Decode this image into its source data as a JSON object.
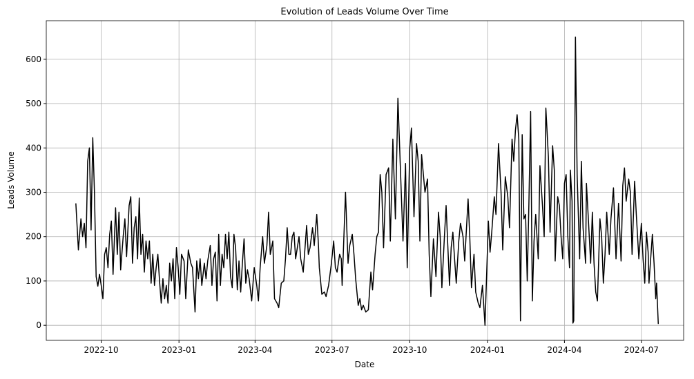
{
  "chart_data": {
    "type": "line",
    "title": "Evolution of Leads Volume Over Time",
    "xlabel": "Date",
    "ylabel": "Leads Volume",
    "color": "#000000",
    "grid": true,
    "xlim": [
      "2022-07-28",
      "2024-08-20"
    ],
    "ylim": [
      -34,
      687
    ],
    "xticks": [
      "2022-10",
      "2023-01",
      "2023-04",
      "2023-07",
      "2023-10",
      "2024-01",
      "2024-04",
      "2024-07"
    ],
    "yticks": [
      0,
      100,
      200,
      300,
      400,
      500,
      600
    ],
    "x": [
      "2022-09-01",
      "2022-09-04",
      "2022-09-07",
      "2022-09-09",
      "2022-09-11",
      "2022-09-13",
      "2022-09-15",
      "2022-09-17",
      "2022-09-19",
      "2022-09-21",
      "2022-09-23",
      "2022-09-25",
      "2022-09-27",
      "2022-09-29",
      "2022-10-01",
      "2022-10-03",
      "2022-10-05",
      "2022-10-07",
      "2022-10-09",
      "2022-10-11",
      "2022-10-13",
      "2022-10-15",
      "2022-10-18",
      "2022-10-20",
      "2022-10-22",
      "2022-10-24",
      "2022-10-27",
      "2022-10-29",
      "2022-10-31",
      "2022-11-03",
      "2022-11-05",
      "2022-11-07",
      "2022-11-09",
      "2022-11-11",
      "2022-11-13",
      "2022-11-15",
      "2022-11-17",
      "2022-11-19",
      "2022-11-21",
      "2022-11-23",
      "2022-11-25",
      "2022-11-27",
      "2022-11-29",
      "2022-12-01",
      "2022-12-03",
      "2022-12-05",
      "2022-12-07",
      "2022-12-09",
      "2022-12-11",
      "2022-12-13",
      "2022-12-15",
      "2022-12-17",
      "2022-12-19",
      "2022-12-21",
      "2022-12-23",
      "2022-12-25",
      "2022-12-27",
      "2022-12-29",
      "2022-12-31",
      "2023-01-02",
      "2023-01-04",
      "2023-01-07",
      "2023-01-09",
      "2023-01-12",
      "2023-01-15",
      "2023-01-17",
      "2023-01-20",
      "2023-01-22",
      "2023-01-24",
      "2023-01-26",
      "2023-01-28",
      "2023-01-31",
      "2023-02-02",
      "2023-02-04",
      "2023-02-07",
      "2023-02-09",
      "2023-02-11",
      "2023-02-13",
      "2023-02-15",
      "2023-02-17",
      "2023-02-19",
      "2023-02-21",
      "2023-02-23",
      "2023-02-25",
      "2023-02-27",
      "2023-03-01",
      "2023-03-03",
      "2023-03-05",
      "2023-03-07",
      "2023-03-09",
      "2023-03-11",
      "2023-03-13",
      "2023-03-15",
      "2023-03-17",
      "2023-03-19",
      "2023-03-21",
      "2023-03-23",
      "2023-03-25",
      "2023-03-28",
      "2023-03-31",
      "2023-04-03",
      "2023-04-05",
      "2023-04-07",
      "2023-04-10",
      "2023-04-12",
      "2023-04-15",
      "2023-04-17",
      "2023-04-19",
      "2023-04-22",
      "2023-04-24",
      "2023-04-27",
      "2023-04-29",
      "2023-05-02",
      "2023-05-05",
      "2023-05-07",
      "2023-05-09",
      "2023-05-11",
      "2023-05-13",
      "2023-05-15",
      "2023-05-17",
      "2023-05-19",
      "2023-05-21",
      "2023-05-23",
      "2023-05-25",
      "2023-05-28",
      "2023-06-01",
      "2023-06-03",
      "2023-06-05",
      "2023-06-08",
      "2023-06-10",
      "2023-06-13",
      "2023-06-15",
      "2023-06-16",
      "2023-06-19",
      "2023-06-22",
      "2023-06-24",
      "2023-06-27",
      "2023-06-30",
      "2023-07-03",
      "2023-07-05",
      "2023-07-07",
      "2023-07-10",
      "2023-07-12",
      "2023-07-13",
      "2023-07-17",
      "2023-07-20",
      "2023-07-22",
      "2023-07-25",
      "2023-07-27",
      "2023-07-29",
      "2023-08-01",
      "2023-08-03",
      "2023-08-05",
      "2023-08-07",
      "2023-08-10",
      "2023-08-13",
      "2023-08-16",
      "2023-08-18",
      "2023-08-21",
      "2023-08-23",
      "2023-08-25",
      "2023-08-27",
      "2023-08-29",
      "2023-08-31",
      "2023-09-03",
      "2023-09-06",
      "2023-09-08",
      "2023-09-11",
      "2023-09-14",
      "2023-09-17",
      "2023-09-20",
      "2023-09-23",
      "2023-09-26",
      "2023-09-28",
      "2023-10-01",
      "2023-10-03",
      "2023-10-06",
      "2023-10-09",
      "2023-10-11",
      "2023-10-13",
      "2023-10-15",
      "2023-10-19",
      "2023-10-22",
      "2023-10-24",
      "2023-10-26",
      "2023-10-29",
      "2023-11-01",
      "2023-11-04",
      "2023-11-06",
      "2023-11-08",
      "2023-11-11",
      "2023-11-13",
      "2023-11-15",
      "2023-11-17",
      "2023-11-19",
      "2023-11-21",
      "2023-11-23",
      "2023-11-25",
      "2023-11-28",
      "2023-11-30",
      "2023-12-03",
      "2023-12-05",
      "2023-12-09",
      "2023-12-11",
      "2023-12-13",
      "2023-12-16",
      "2023-12-18",
      "2023-12-21",
      "2023-12-23",
      "2023-12-26",
      "2023-12-29",
      "2024-01-02",
      "2024-01-04",
      "2024-01-06",
      "2024-01-09",
      "2024-01-11",
      "2024-01-14",
      "2024-01-17",
      "2024-01-19",
      "2024-01-22",
      "2024-01-25",
      "2024-01-27",
      "2024-01-30",
      "2024-02-01",
      "2024-02-03",
      "2024-02-05",
      "2024-02-07",
      "2024-02-09",
      "2024-02-11",
      "2024-02-13",
      "2024-02-15",
      "2024-02-17",
      "2024-02-19",
      "2024-02-21",
      "2024-02-23",
      "2024-02-25",
      "2024-02-27",
      "2024-03-01",
      "2024-03-03",
      "2024-03-06",
      "2024-03-08",
      "2024-03-10",
      "2024-03-13",
      "2024-03-15",
      "2024-03-18",
      "2024-03-20",
      "2024-03-21",
      "2024-03-24",
      "2024-03-26",
      "2024-03-28",
      "2024-03-30",
      "2024-04-01",
      "2024-04-03",
      "2024-04-05",
      "2024-04-07",
      "2024-04-08",
      "2024-04-10",
      "2024-04-11",
      "2024-04-12",
      "2024-04-14",
      "2024-04-16",
      "2024-04-19",
      "2024-04-21",
      "2024-04-23",
      "2024-04-26",
      "2024-04-27",
      "2024-04-29",
      "2024-05-02",
      "2024-05-04",
      "2024-05-06",
      "2024-05-08",
      "2024-05-10",
      "2024-05-13",
      "2024-05-15",
      "2024-05-17",
      "2024-05-19",
      "2024-05-21",
      "2024-05-24",
      "2024-05-26",
      "2024-05-29",
      "2024-06-01",
      "2024-06-04",
      "2024-06-07",
      "2024-06-09",
      "2024-06-11",
      "2024-06-13",
      "2024-06-16",
      "2024-06-18",
      "2024-06-20",
      "2024-06-23",
      "2024-06-25",
      "2024-06-28",
      "2024-07-01",
      "2024-07-03",
      "2024-07-05",
      "2024-07-07",
      "2024-07-09",
      "2024-07-10",
      "2024-07-12",
      "2024-07-14",
      "2024-07-16",
      "2024-07-18",
      "2024-07-19",
      "2024-07-21"
    ],
    "values": [
      275,
      170,
      240,
      200,
      230,
      175,
      370,
      400,
      215,
      423,
      300,
      110,
      88,
      115,
      90,
      60,
      160,
      175,
      130,
      205,
      235,
      115,
      265,
      160,
      255,
      125,
      200,
      240,
      155,
      270,
      290,
      140,
      220,
      245,
      150,
      287,
      160,
      205,
      120,
      190,
      150,
      190,
      95,
      160,
      90,
      130,
      160,
      100,
      50,
      105,
      60,
      90,
      50,
      140,
      100,
      150,
      60,
      175,
      130,
      70,
      160,
      145,
      60,
      170,
      140,
      130,
      30,
      145,
      105,
      150,
      90,
      140,
      105,
      145,
      180,
      90,
      150,
      165,
      55,
      205,
      90,
      160,
      130,
      205,
      150,
      210,
      110,
      85,
      205,
      175,
      80,
      145,
      75,
      140,
      195,
      95,
      125,
      105,
      55,
      130,
      90,
      55,
      130,
      200,
      140,
      180,
      255,
      160,
      190,
      60,
      50,
      40,
      95,
      100,
      150,
      220,
      160,
      160,
      200,
      210,
      150,
      175,
      200,
      150,
      120,
      225,
      160,
      175,
      220,
      180,
      250,
      180,
      130,
      70,
      75,
      65,
      90,
      135,
      190,
      130,
      120,
      160,
      150,
      90,
      300,
      140,
      180,
      205,
      160,
      105,
      45,
      60,
      35,
      45,
      30,
      35,
      120,
      80,
      160,
      200,
      210,
      340,
      300,
      175,
      340,
      355,
      190,
      420,
      240,
      512,
      350,
      190,
      365,
      130,
      400,
      445,
      245,
      410,
      370,
      190,
      385,
      300,
      330,
      160,
      65,
      195,
      110,
      255,
      200,
      85,
      200,
      270,
      180,
      90,
      175,
      210,
      150,
      95,
      190,
      230,
      200,
      145,
      285,
      200,
      85,
      160,
      75,
      50,
      40,
      90,
      0,
      235,
      165,
      210,
      290,
      250,
      410,
      300,
      170,
      335,
      290,
      220,
      420,
      370,
      440,
      475,
      420,
      10,
      430,
      240,
      250,
      100,
      280,
      482,
      55,
      190,
      250,
      150,
      360,
      270,
      200,
      490,
      380,
      210,
      405,
      350,
      145,
      290,
      270,
      200,
      150,
      320,
      340,
      200,
      130,
      350,
      280,
      5,
      10,
      650,
      340,
      150,
      370,
      220,
      140,
      320,
      250,
      140,
      255,
      140,
      75,
      55,
      240,
      200,
      95,
      160,
      255,
      160,
      240,
      310,
      150,
      275,
      145,
      315,
      355,
      280,
      330,
      300,
      160,
      325,
      250,
      150,
      230,
      150,
      95,
      210,
      165,
      95,
      150,
      205,
      140,
      60,
      95,
      3
    ]
  }
}
